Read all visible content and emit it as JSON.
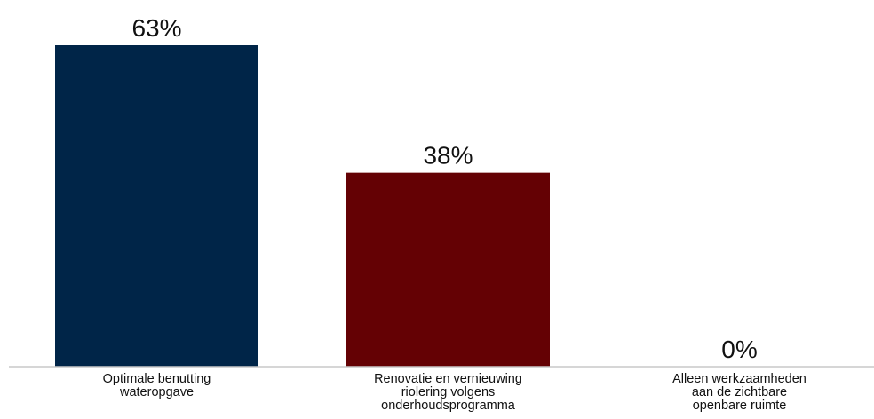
{
  "chart_data": {
    "type": "bar",
    "categories": [
      [
        "Optimale benutting",
        "wateropgave"
      ],
      [
        "Renovatie en vernieuwing",
        "riolering volgens",
        "onderhoudsprogramma"
      ],
      [
        "Alleen werkzaamheden",
        "aan de zichtbare",
        "openbare ruimte"
      ]
    ],
    "values": [
      63,
      38,
      0
    ],
    "value_labels": [
      "63%",
      "38%",
      "0%"
    ],
    "colors": [
      "#002548",
      "#640104",
      "#002548"
    ],
    "ylim": [
      0,
      63
    ],
    "grid": false,
    "legend": "none",
    "title": "",
    "xlabel": "",
    "ylabel": ""
  }
}
